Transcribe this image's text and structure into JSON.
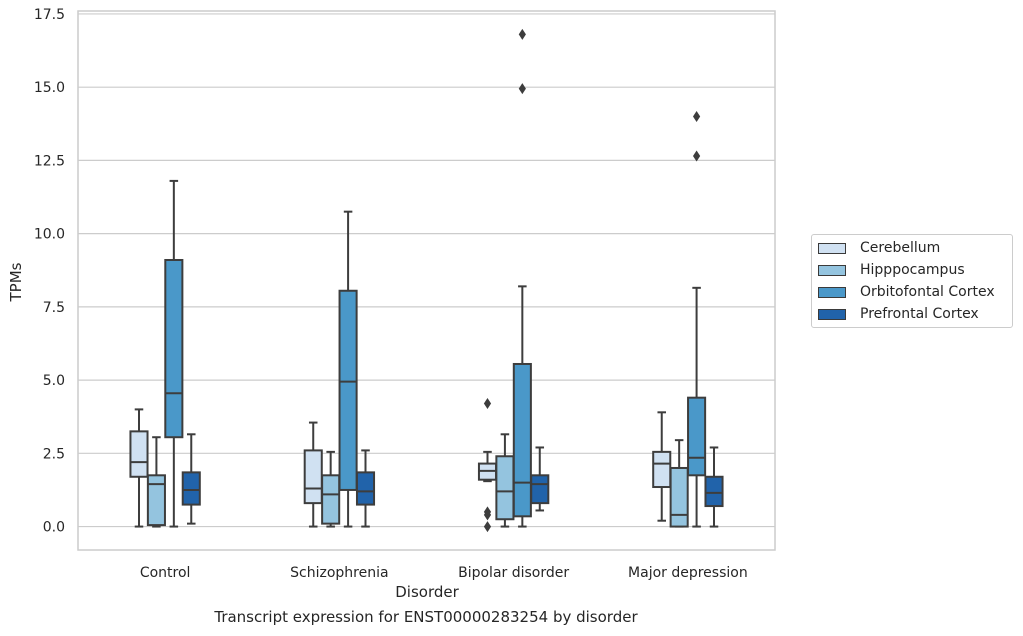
{
  "chart_data": {
    "type": "box",
    "caption": "Transcript expression for ENST00000283254 by disorder",
    "xlabel": "Disorder",
    "ylabel": "TPMs",
    "categories": [
      "Control",
      "Schizophrenia",
      "Bipolar disorder",
      "Major depression"
    ],
    "ylim": [
      -0.8,
      17.6
    ],
    "yticks": [
      0.0,
      2.5,
      5.0,
      7.5,
      10.0,
      12.5,
      15.0,
      17.5
    ],
    "ytick_labels": [
      "0.0",
      "2.5",
      "5.0",
      "7.5",
      "10.0",
      "12.5",
      "15.0",
      "17.5"
    ],
    "grid": "horizontal",
    "legend_position": "right",
    "series": [
      {
        "name": "Cerebellum",
        "color": "#d0e1f2",
        "boxes": [
          {
            "whisker_low": 0.0,
            "q1": 1.7,
            "median": 2.2,
            "q3": 3.25,
            "whisker_high": 4.0,
            "outliers": []
          },
          {
            "whisker_low": 0.0,
            "q1": 0.8,
            "median": 1.3,
            "q3": 2.6,
            "whisker_high": 3.55,
            "outliers": []
          },
          {
            "whisker_low": 1.55,
            "q1": 1.6,
            "median": 1.9,
            "q3": 2.15,
            "whisker_high": 2.55,
            "outliers": [
              4.2,
              0.5,
              0.4,
              0.0
            ]
          },
          {
            "whisker_low": 0.2,
            "q1": 1.35,
            "median": 2.15,
            "q3": 2.55,
            "whisker_high": 3.9,
            "outliers": []
          }
        ]
      },
      {
        "name": "Hipppocampus",
        "color": "#94c4df",
        "boxes": [
          {
            "whisker_low": 0.0,
            "q1": 0.05,
            "median": 1.45,
            "q3": 1.75,
            "whisker_high": 3.05,
            "outliers": []
          },
          {
            "whisker_low": 0.0,
            "q1": 0.1,
            "median": 1.1,
            "q3": 1.75,
            "whisker_high": 2.55,
            "outliers": []
          },
          {
            "whisker_low": 0.0,
            "q1": 0.25,
            "median": 1.2,
            "q3": 2.4,
            "whisker_high": 3.15,
            "outliers": []
          },
          {
            "whisker_low": 0.0,
            "q1": 0.0,
            "median": 0.4,
            "q3": 2.0,
            "whisker_high": 2.95,
            "outliers": []
          }
        ]
      },
      {
        "name": "Orbitofontal Cortex",
        "color": "#4a98c9",
        "boxes": [
          {
            "whisker_low": 0.0,
            "q1": 3.05,
            "median": 4.55,
            "q3": 9.1,
            "whisker_high": 11.8,
            "outliers": []
          },
          {
            "whisker_low": 0.0,
            "q1": 1.25,
            "median": 4.95,
            "q3": 8.05,
            "whisker_high": 10.75,
            "outliers": []
          },
          {
            "whisker_low": 0.0,
            "q1": 0.35,
            "median": 1.5,
            "q3": 5.55,
            "whisker_high": 8.2,
            "outliers": [
              16.8,
              14.95
            ]
          },
          {
            "whisker_low": 0.0,
            "q1": 1.75,
            "median": 2.35,
            "q3": 4.4,
            "whisker_high": 8.15,
            "outliers": [
              14.0,
              12.65
            ]
          }
        ]
      },
      {
        "name": "Prefrontal Cortex",
        "color": "#2163aa",
        "boxes": [
          {
            "whisker_low": 0.1,
            "q1": 0.75,
            "median": 1.25,
            "q3": 1.85,
            "whisker_high": 3.15,
            "outliers": []
          },
          {
            "whisker_low": 0.0,
            "q1": 0.75,
            "median": 1.2,
            "q3": 1.85,
            "whisker_high": 2.6,
            "outliers": []
          },
          {
            "whisker_low": 0.55,
            "q1": 0.8,
            "median": 1.45,
            "q3": 1.75,
            "whisker_high": 2.7,
            "outliers": []
          },
          {
            "whisker_low": 0.0,
            "q1": 0.7,
            "median": 1.15,
            "q3": 1.7,
            "whisker_high": 2.7,
            "outliers": []
          }
        ]
      }
    ]
  }
}
